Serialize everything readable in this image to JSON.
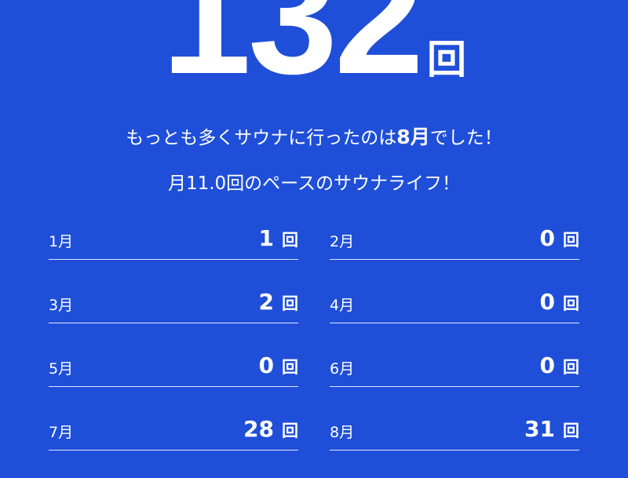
{
  "total": {
    "value": "132",
    "unit": "回"
  },
  "summary": {
    "prefix": "もっとも多くサウナに行ったのは",
    "month": "8月",
    "suffix": "でした！"
  },
  "pace": "月11.0回のペースのサウナライフ！",
  "months": [
    {
      "label": "1月",
      "count": "1",
      "unit": "回"
    },
    {
      "label": "2月",
      "count": "0",
      "unit": "回"
    },
    {
      "label": "3月",
      "count": "2",
      "unit": "回"
    },
    {
      "label": "4月",
      "count": "0",
      "unit": "回"
    },
    {
      "label": "5月",
      "count": "0",
      "unit": "回"
    },
    {
      "label": "6月",
      "count": "0",
      "unit": "回"
    },
    {
      "label": "7月",
      "count": "28",
      "unit": "回"
    },
    {
      "label": "8月",
      "count": "31",
      "unit": "回"
    }
  ],
  "colors": {
    "background": "#1f4fd8",
    "text": "#ffffff"
  }
}
